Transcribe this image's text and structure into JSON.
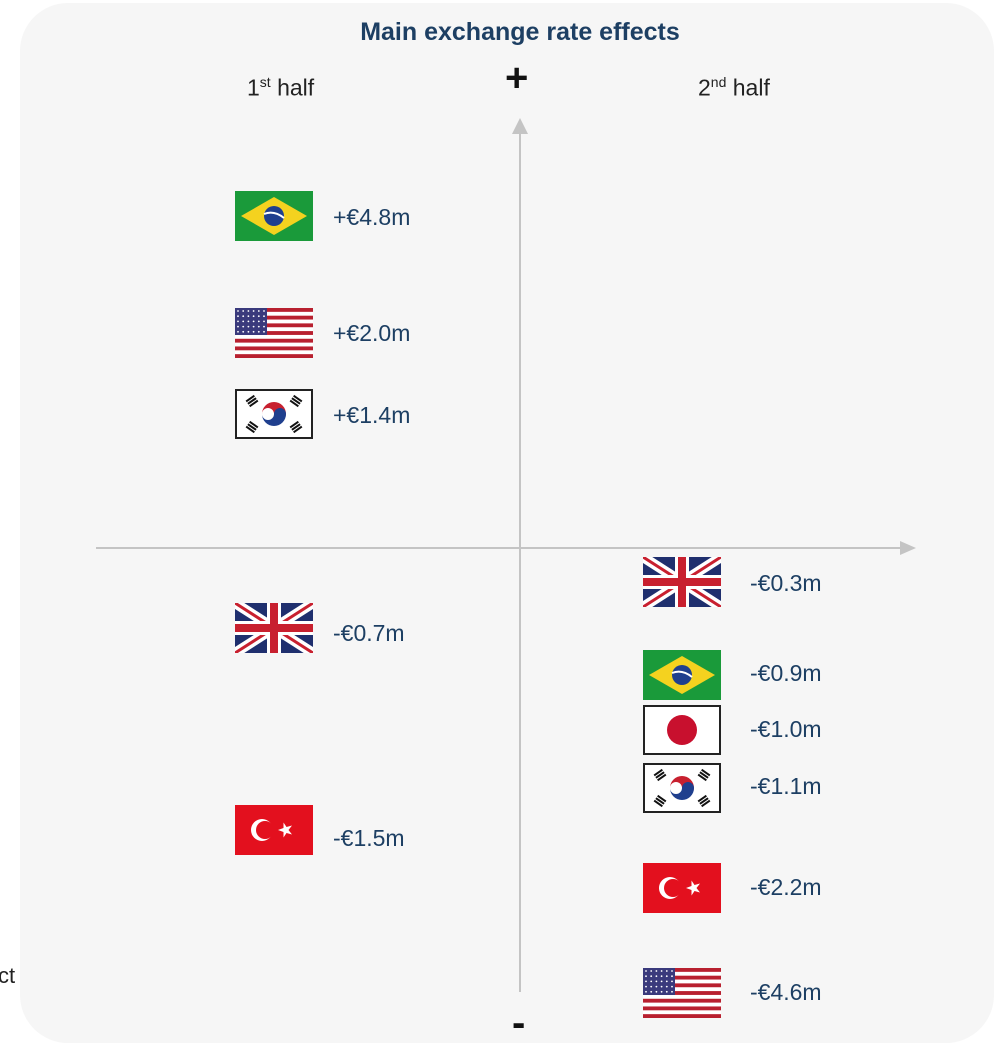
{
  "title": "Main exchange rate effects",
  "first_half": {
    "ord": "1",
    "sup": "st",
    "rest": " half"
  },
  "second_half": {
    "ord": "2",
    "sup": "nd",
    "rest": " half"
  },
  "axis_symbols": {
    "plus": "+",
    "minus": "-"
  },
  "partial_text": "ct",
  "first_half_items": [
    {
      "country": "brazil",
      "value": "+€4.8m"
    },
    {
      "country": "usa",
      "value": "+€2.0m"
    },
    {
      "country": "korea",
      "value": "+€1.4m"
    },
    {
      "country": "uk",
      "value": "-€0.7m"
    },
    {
      "country": "turkey",
      "value": "-€1.5m"
    }
  ],
  "second_half_items": [
    {
      "country": "uk",
      "value": "-€0.3m"
    },
    {
      "country": "brazil",
      "value": "-€0.9m"
    },
    {
      "country": "japan",
      "value": "-€1.0m"
    },
    {
      "country": "korea",
      "value": "-€1.1m"
    },
    {
      "country": "turkey",
      "value": "-€2.2m"
    },
    {
      "country": "usa",
      "value": "-€4.6m"
    }
  ],
  "colors": {
    "title": "#1d3f63",
    "values": "#1d3f63",
    "axis": "#c4c4c4",
    "panel": "#f6f6f6"
  }
}
